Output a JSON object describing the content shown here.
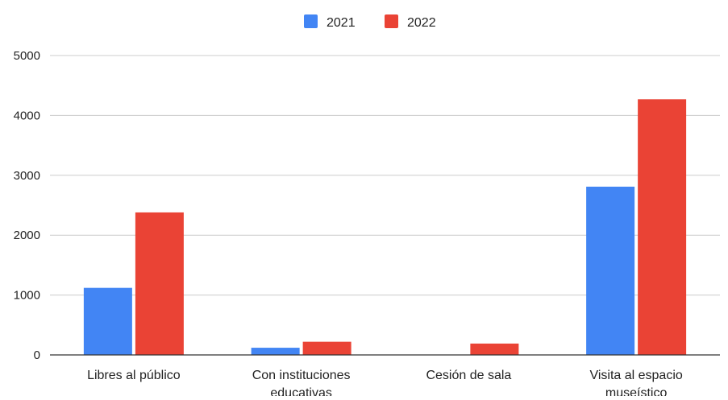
{
  "chart_data": {
    "type": "bar",
    "title": "",
    "xlabel": "",
    "ylabel": "",
    "categories": [
      [
        "Libres al público"
      ],
      [
        "Con instituciones",
        "educativas"
      ],
      [
        "Cesión de sala"
      ],
      [
        "Visita al espacio",
        "museístico"
      ]
    ],
    "series": [
      {
        "name": "2021",
        "color": "#4285F4",
        "values": [
          1120,
          120,
          0,
          2810
        ]
      },
      {
        "name": "2022",
        "color": "#EA4335",
        "values": [
          2380,
          220,
          190,
          4270
        ]
      }
    ],
    "ylim": [
      0,
      5000
    ],
    "yticks": [
      "0",
      "1000",
      "2000",
      "3000",
      "4000",
      "5000"
    ],
    "grid": true,
    "legend_position": "top-center"
  }
}
